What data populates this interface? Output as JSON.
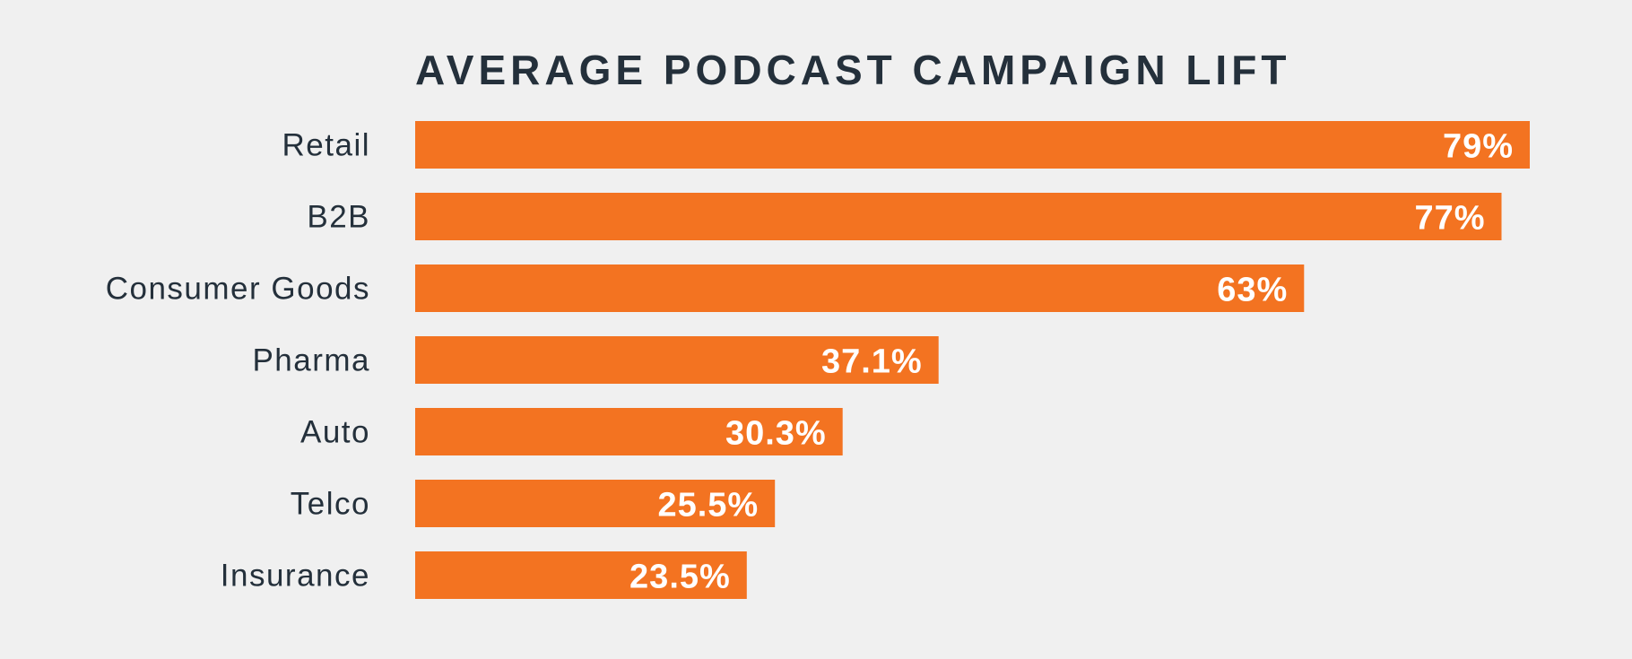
{
  "chart_data": {
    "type": "bar",
    "orientation": "horizontal",
    "title": "AVERAGE PODCAST CAMPAIGN LIFT",
    "categories": [
      "Retail",
      "B2B",
      "Consumer Goods",
      "Pharma",
      "Auto",
      "Telco",
      "Insurance"
    ],
    "values": [
      79,
      77,
      63,
      37.1,
      30.3,
      25.5,
      23.5
    ],
    "value_labels": [
      "79%",
      "77%",
      "63%",
      "37.1%",
      "30.3%",
      "25.5%",
      "23.5%"
    ],
    "unit": "%",
    "xlim": [
      0,
      79
    ],
    "grid": false,
    "legend": "none",
    "bar_color": "#f37321",
    "background_color": "#f0f0f0",
    "text_color": "#24303b"
  }
}
